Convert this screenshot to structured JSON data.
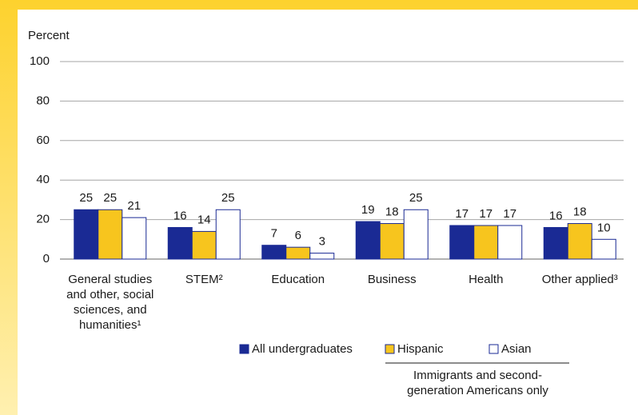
{
  "chart_data": {
    "type": "bar",
    "y_axis_label": "Percent",
    "categories": [
      "General studies and other, social sciences, and humanities¹",
      "STEM²",
      "Education",
      "Business",
      "Health",
      "Other applied³"
    ],
    "series": [
      {
        "name": "All undergraduates",
        "color": "#1a2a94",
        "values": [
          25,
          16,
          7,
          19,
          17,
          16
        ]
      },
      {
        "name": "Hispanic",
        "color": "#f7c51e",
        "values": [
          25,
          14,
          6,
          18,
          17,
          18
        ]
      },
      {
        "name": "Asian",
        "color": "#ffffff",
        "values": [
          21,
          25,
          3,
          25,
          17,
          10
        ]
      }
    ],
    "edge_color": "#1a2a94",
    "legend_note": "Immigrants and second-generation Americans only",
    "ylim": [
      0,
      100
    ],
    "yticks": [
      0,
      20,
      40,
      60,
      80,
      100
    ],
    "grid": true
  }
}
